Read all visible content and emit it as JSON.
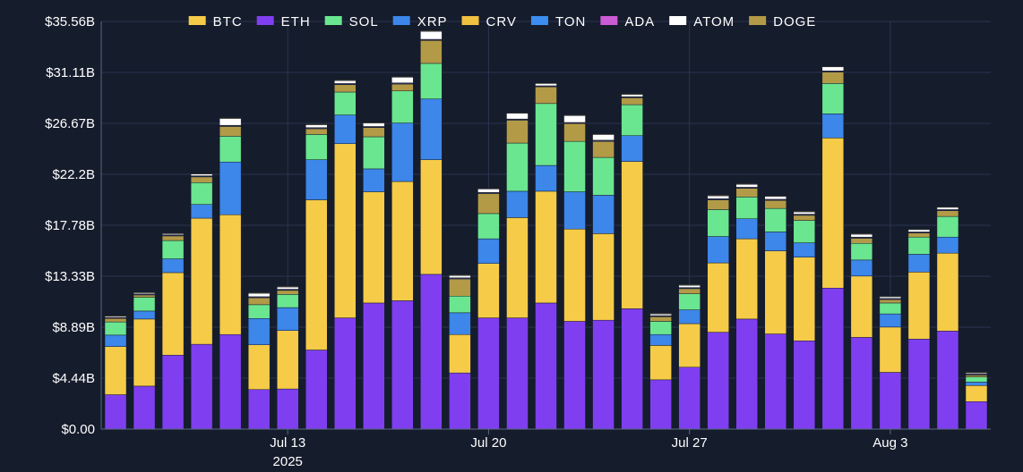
{
  "chart_data": {
    "type": "bar",
    "stacked": true,
    "title": "",
    "xlabel": "",
    "ylabel": "",
    "ylim": [
      0,
      35.56
    ],
    "y_ticks": [
      "$0.00",
      "$4.44B",
      "$8.89B",
      "$13.33B",
      "$17.78B",
      "$22.2B",
      "$26.67B",
      "$31.11B",
      "$35.56B"
    ],
    "x_ticks": [
      {
        "bar_index": 6,
        "label": "Jul 13",
        "sublabel": "2025"
      },
      {
        "bar_index": 13,
        "label": "Jul 20",
        "sublabel": ""
      },
      {
        "bar_index": 20,
        "label": "Jul 27",
        "sublabel": ""
      },
      {
        "bar_index": 27,
        "label": "Aug 3",
        "sublabel": ""
      }
    ],
    "categories": [
      "Jul 7",
      "Jul 8",
      "Jul 9",
      "Jul 10",
      "Jul 11",
      "Jul 12",
      "Jul 13",
      "Jul 14",
      "Jul 15",
      "Jul 16",
      "Jul 17",
      "Jul 18",
      "Jul 19",
      "Jul 20",
      "Jul 21",
      "Jul 22",
      "Jul 23",
      "Jul 24",
      "Jul 25",
      "Jul 26",
      "Jul 27",
      "Jul 28",
      "Jul 29",
      "Jul 30",
      "Jul 31",
      "Aug 1",
      "Aug 2",
      "Aug 3",
      "Aug 4",
      "Aug 5",
      "Aug 6"
    ],
    "grid": true,
    "legend_position": "top",
    "series": [
      {
        "name": "ETH",
        "color": "#7f3ff0",
        "values": [
          3.0,
          3.75,
          6.45,
          7.4,
          8.25,
          3.45,
          3.5,
          6.9,
          9.7,
          11.0,
          11.2,
          13.5,
          4.9,
          9.7,
          9.7,
          11.0,
          9.4,
          9.5,
          10.5,
          4.3,
          5.4,
          8.45,
          9.6,
          8.3,
          7.7,
          12.3,
          8.0,
          4.95,
          7.85,
          8.55,
          2.4
        ]
      },
      {
        "name": "BTC",
        "color": "#f5cb48",
        "values": [
          4.2,
          5.85,
          7.2,
          11.0,
          10.45,
          3.9,
          5.1,
          13.1,
          15.2,
          9.7,
          10.4,
          10.0,
          3.35,
          4.75,
          8.75,
          9.75,
          8.05,
          7.55,
          12.85,
          3.0,
          3.8,
          6.05,
          7.0,
          7.25,
          7.3,
          13.1,
          5.35,
          3.95,
          5.85,
          6.8,
          1.4
        ]
      },
      {
        "name": "XRP",
        "color": "#3d86ea",
        "values": [
          1.0,
          0.7,
          1.2,
          1.2,
          4.6,
          2.3,
          2.0,
          3.5,
          2.5,
          2.0,
          5.1,
          5.3,
          1.9,
          2.15,
          2.3,
          2.25,
          3.25,
          3.35,
          2.25,
          0.95,
          1.2,
          2.3,
          1.75,
          1.65,
          1.25,
          2.1,
          1.4,
          1.15,
          1.55,
          1.4,
          0.3
        ]
      },
      {
        "name": "SOL",
        "color": "#6ae690",
        "values": [
          1.15,
          1.2,
          1.6,
          1.9,
          2.25,
          1.2,
          1.15,
          2.2,
          2.0,
          2.8,
          2.8,
          3.1,
          1.45,
          2.2,
          4.2,
          5.4,
          4.4,
          3.3,
          2.7,
          1.15,
          1.4,
          2.35,
          1.9,
          2.05,
          1.95,
          2.65,
          1.45,
          0.95,
          1.5,
          1.8,
          0.45
        ]
      },
      {
        "name": "DOGE",
        "color": "#b39a46",
        "values": [
          0.3,
          0.2,
          0.4,
          0.5,
          0.85,
          0.6,
          0.35,
          0.5,
          0.65,
          0.8,
          0.6,
          2.0,
          1.5,
          1.75,
          2.0,
          1.45,
          1.55,
          1.4,
          0.6,
          0.4,
          0.45,
          0.85,
          0.75,
          0.7,
          0.45,
          1.0,
          0.45,
          0.3,
          0.35,
          0.5,
          0.15
        ]
      },
      {
        "name": "TON",
        "color": "#3b8ef0",
        "values": [
          0.05,
          0.05,
          0.05,
          0.05,
          0.05,
          0.05,
          0.05,
          0.05,
          0.05,
          0.05,
          0.05,
          0.05,
          0.05,
          0.05,
          0.05,
          0.05,
          0.05,
          0.05,
          0.05,
          0.05,
          0.05,
          0.05,
          0.05,
          0.05,
          0.05,
          0.05,
          0.05,
          0.05,
          0.05,
          0.05,
          0.05
        ]
      },
      {
        "name": "ADA",
        "color": "#cc5bd6",
        "values": [
          0.05,
          0.05,
          0.05,
          0.05,
          0.05,
          0.05,
          0.05,
          0.05,
          0.05,
          0.05,
          0.05,
          0.05,
          0.05,
          0.05,
          0.05,
          0.05,
          0.05,
          0.05,
          0.05,
          0.05,
          0.05,
          0.05,
          0.05,
          0.05,
          0.05,
          0.05,
          0.05,
          0.05,
          0.05,
          0.05,
          0.05
        ]
      },
      {
        "name": "ATOM",
        "color": "#ffffff",
        "values": [
          0.1,
          0.1,
          0.1,
          0.15,
          0.6,
          0.3,
          0.2,
          0.25,
          0.25,
          0.3,
          0.5,
          0.7,
          0.2,
          0.3,
          0.5,
          0.2,
          0.6,
          0.5,
          0.2,
          0.15,
          0.2,
          0.25,
          0.25,
          0.25,
          0.2,
          0.35,
          0.25,
          0.15,
          0.2,
          0.2,
          0.1
        ]
      },
      {
        "name": "CRV",
        "color": "#f0c040",
        "values": [
          0.05,
          0.05,
          0.05,
          0.05,
          0.05,
          0.05,
          0.05,
          0.05,
          0.05,
          0.05,
          0.05,
          0.05,
          0.05,
          0.05,
          0.05,
          0.05,
          0.05,
          0.05,
          0.05,
          0.05,
          0.05,
          0.05,
          0.05,
          0.05,
          0.05,
          0.05,
          0.05,
          0.05,
          0.05,
          0.05,
          0.05
        ]
      }
    ],
    "legend": [
      {
        "name": "BTC",
        "color": "#f5cb48"
      },
      {
        "name": "ETH",
        "color": "#7f3ff0"
      },
      {
        "name": "SOL",
        "color": "#6ae690"
      },
      {
        "name": "XRP",
        "color": "#3d86ea"
      },
      {
        "name": "CRV",
        "color": "#f0c040"
      },
      {
        "name": "TON",
        "color": "#3b8ef0"
      },
      {
        "name": "ADA",
        "color": "#cc5bd6"
      },
      {
        "name": "ATOM",
        "color": "#ffffff"
      },
      {
        "name": "DOGE",
        "color": "#b39a46"
      }
    ],
    "colors": {
      "background": "#151c2c",
      "grid": "#2a3550",
      "axis": "#5a6785",
      "text": "#ffffff"
    }
  }
}
